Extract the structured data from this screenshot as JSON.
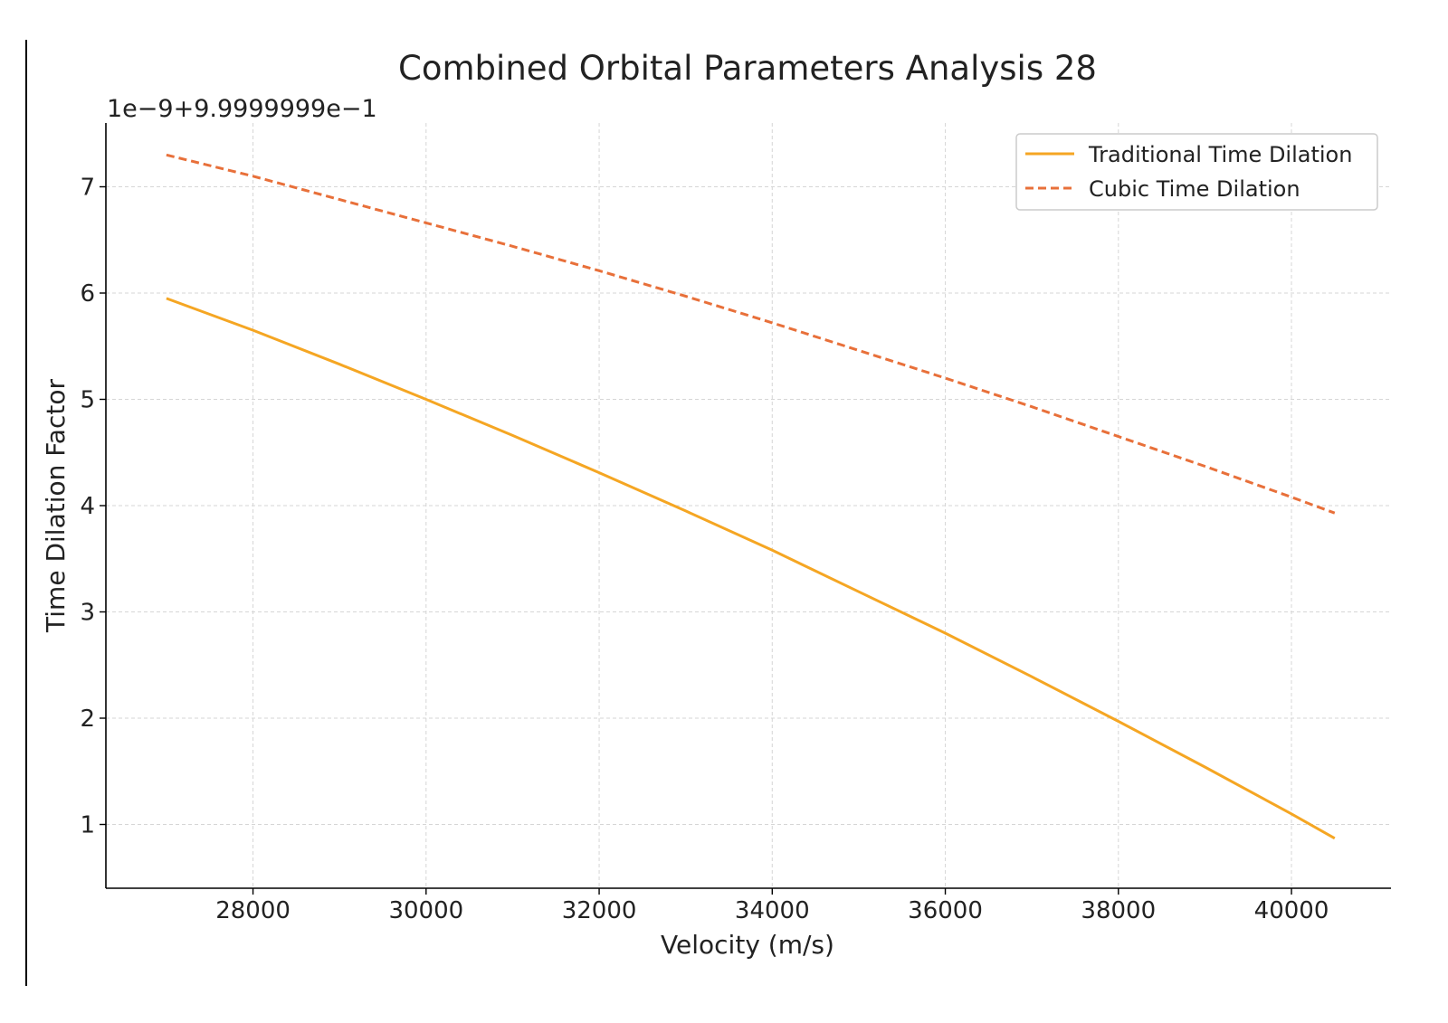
{
  "chart_data": {
    "type": "line",
    "title": "Combined Orbital Parameters Analysis 28",
    "offset_label": "1e−9+9.9999999e−1",
    "xlabel": "Velocity (m/s)",
    "ylabel": "Time Dilation Factor",
    "xlim": [
      26300,
      41150
    ],
    "ylim": [
      0.4,
      7.6
    ],
    "xticks": [
      28000,
      30000,
      32000,
      34000,
      36000,
      38000,
      40000
    ],
    "yticks": [
      1,
      2,
      3,
      4,
      5,
      6,
      7
    ],
    "grid": true,
    "legend_position": "top-right",
    "series": [
      {
        "name": "Traditional Time Dilation",
        "color": "#f5a623",
        "style": "solid",
        "x": [
          27000,
          28000,
          29000,
          30000,
          31000,
          32000,
          33000,
          34000,
          35000,
          36000,
          37000,
          38000,
          39000,
          40000,
          40500
        ],
        "y": [
          5.95,
          5.65,
          5.33,
          5.0,
          4.66,
          4.31,
          3.95,
          3.58,
          3.19,
          2.8,
          2.39,
          1.97,
          1.54,
          1.1,
          0.87
        ]
      },
      {
        "name": "Cubic Time Dilation",
        "color": "#e8703a",
        "style": "dashed",
        "x": [
          27000,
          28000,
          29000,
          30000,
          31000,
          32000,
          33000,
          34000,
          35000,
          36000,
          37000,
          38000,
          39000,
          40000,
          40500
        ],
        "y": [
          7.3,
          7.1,
          6.88,
          6.66,
          6.44,
          6.21,
          5.97,
          5.72,
          5.46,
          5.2,
          4.93,
          4.65,
          4.37,
          4.08,
          3.93
        ]
      }
    ]
  }
}
